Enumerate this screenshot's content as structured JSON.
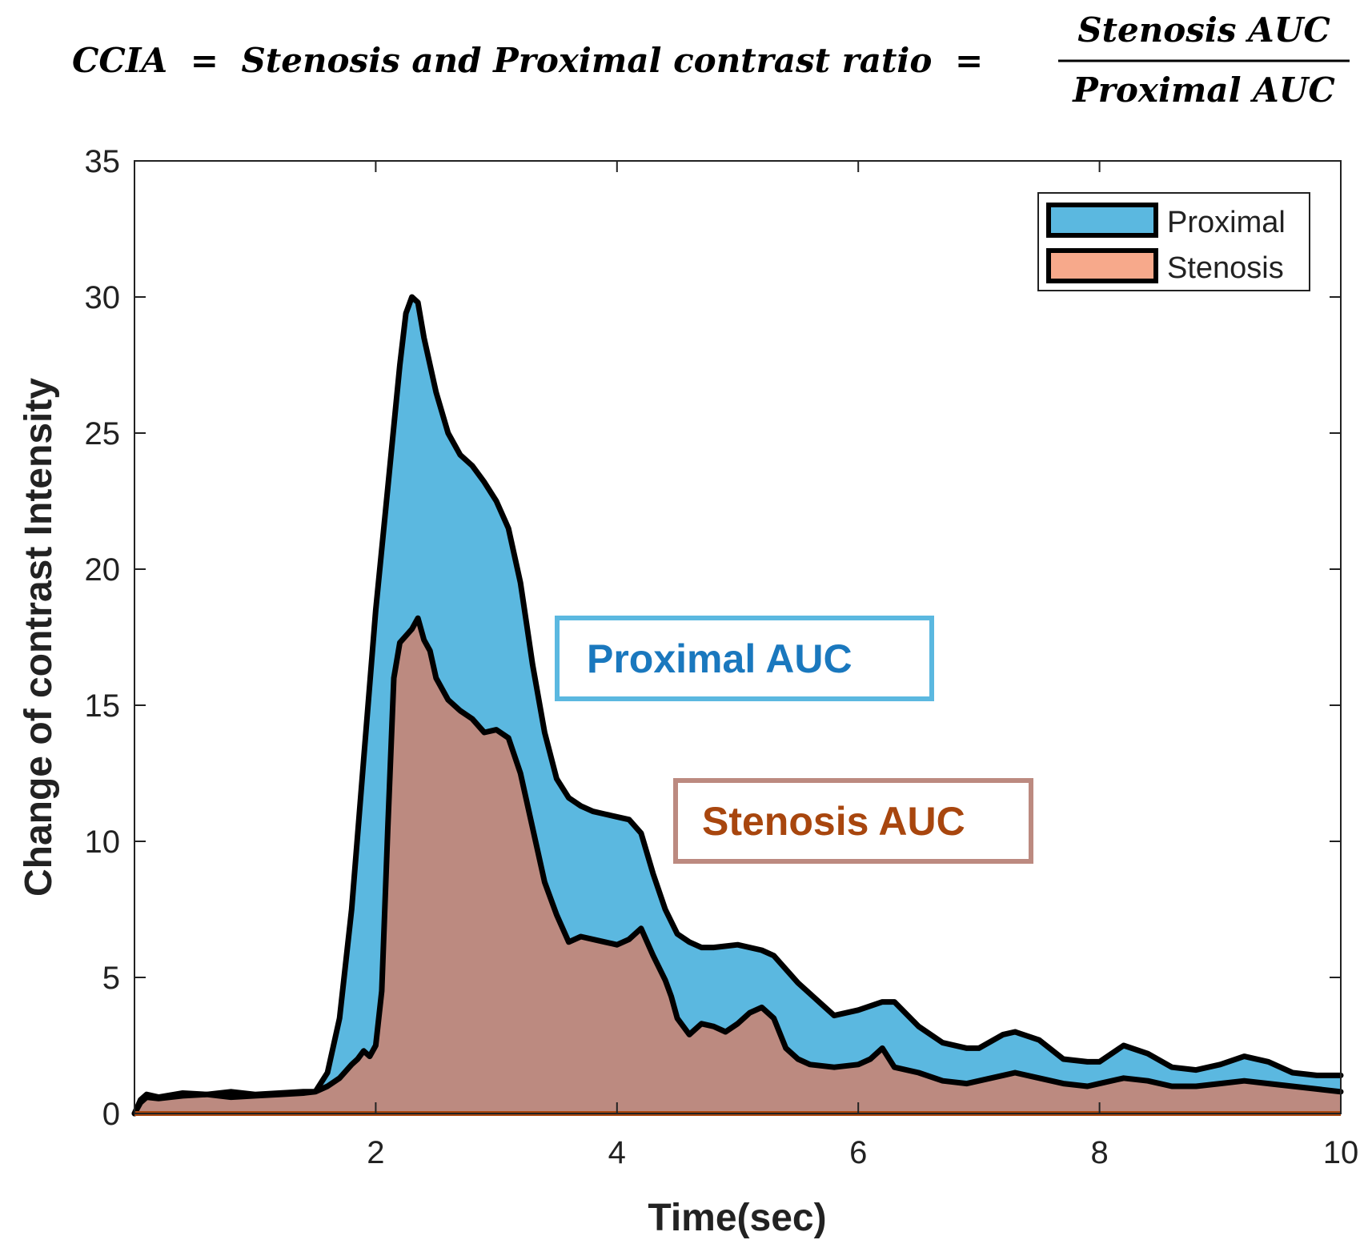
{
  "formula": {
    "lhs": "CCIA",
    "eq1": "=",
    "middle": "Stenosis and Proximal contrast ratio",
    "eq2": "=",
    "numerator": "Stenosis AUC",
    "denominator": "Proximal AUC"
  },
  "colors": {
    "proximal_fill": "#5BB8E0",
    "stenosis_fill": "#BC8A80",
    "stenosis_legend_fill": "#F7A98B",
    "proximal_box_border": "#5BB8E0",
    "proximal_box_text": "#1A78BE",
    "stenosis_box_border": "#BC8A80",
    "stenosis_box_text": "#A8460E",
    "stenosis_baseline": "#A8460E"
  },
  "chart_data": {
    "type": "area",
    "title": "",
    "xlabel": "Time(sec)",
    "ylabel": "Change of contrast Intensity",
    "xlim": [
      0,
      10
    ],
    "ylim": [
      0,
      35
    ],
    "xticks": [
      2,
      4,
      6,
      8,
      10
    ],
    "xtick_labels": [
      "2",
      "4",
      "6",
      "8",
      "10"
    ],
    "yticks": [
      0,
      5,
      10,
      15,
      20,
      25,
      30,
      35
    ],
    "ytick_labels": [
      "0",
      "5",
      "10",
      "15",
      "20",
      "25",
      "30",
      "35"
    ],
    "grid": false,
    "legend": {
      "placement": "top-right",
      "entries": [
        "Proximal",
        "Stenosis"
      ]
    },
    "annotations": [
      "Proximal AUC",
      "Stenosis AUC"
    ],
    "series": [
      {
        "name": "Proximal",
        "x": [
          0,
          0.05,
          0.1,
          0.2,
          0.4,
          0.6,
          0.8,
          1.0,
          1.2,
          1.4,
          1.5,
          1.6,
          1.7,
          1.8,
          1.9,
          2.0,
          2.1,
          2.2,
          2.25,
          2.3,
          2.35,
          2.4,
          2.5,
          2.6,
          2.7,
          2.8,
          2.9,
          3.0,
          3.1,
          3.2,
          3.25,
          3.3,
          3.4,
          3.5,
          3.6,
          3.7,
          3.8,
          3.9,
          4.0,
          4.1,
          4.2,
          4.3,
          4.4,
          4.5,
          4.6,
          4.7,
          4.8,
          5.0,
          5.2,
          5.3,
          5.5,
          5.7,
          5.8,
          6.0,
          6.2,
          6.3,
          6.5,
          6.7,
          6.9,
          7.0,
          7.2,
          7.3,
          7.5,
          7.7,
          7.9,
          8.0,
          8.2,
          8.4,
          8.6,
          8.8,
          9.0,
          9.2,
          9.4,
          9.6,
          9.8,
          10.0
        ],
        "values": [
          0,
          0.5,
          0.7,
          0.6,
          0.75,
          0.7,
          0.8,
          0.7,
          0.75,
          0.8,
          0.8,
          1.5,
          3.5,
          7.5,
          13,
          18.5,
          23,
          27.5,
          29.4,
          30.0,
          29.8,
          28.5,
          26.5,
          25.0,
          24.2,
          23.8,
          23.2,
          22.5,
          21.5,
          19.5,
          18.0,
          16.5,
          14.0,
          12.3,
          11.6,
          11.3,
          11.1,
          11.0,
          10.9,
          10.8,
          10.3,
          8.8,
          7.5,
          6.6,
          6.3,
          6.1,
          6.1,
          6.2,
          6.0,
          5.8,
          4.8,
          4.0,
          3.6,
          3.8,
          4.1,
          4.1,
          3.2,
          2.6,
          2.4,
          2.4,
          2.9,
          3.0,
          2.7,
          2.0,
          1.9,
          1.9,
          2.5,
          2.2,
          1.7,
          1.6,
          1.8,
          2.1,
          1.9,
          1.5,
          1.4,
          1.4
        ]
      },
      {
        "name": "Stenosis",
        "x": [
          0,
          0.05,
          0.1,
          0.2,
          0.4,
          0.6,
          0.8,
          1.0,
          1.2,
          1.4,
          1.5,
          1.6,
          1.7,
          1.8,
          1.85,
          1.9,
          1.95,
          2.0,
          2.05,
          2.1,
          2.15,
          2.2,
          2.3,
          2.35,
          2.4,
          2.45,
          2.5,
          2.6,
          2.7,
          2.8,
          2.9,
          3.0,
          3.1,
          3.2,
          3.3,
          3.4,
          3.5,
          3.6,
          3.7,
          3.8,
          3.9,
          4.0,
          4.1,
          4.2,
          4.3,
          4.4,
          4.45,
          4.5,
          4.6,
          4.7,
          4.8,
          4.9,
          5.0,
          5.1,
          5.2,
          5.3,
          5.4,
          5.5,
          5.6,
          5.8,
          6.0,
          6.1,
          6.2,
          6.3,
          6.5,
          6.7,
          6.9,
          7.0,
          7.2,
          7.3,
          7.5,
          7.7,
          7.9,
          8.0,
          8.2,
          8.4,
          8.6,
          8.8,
          9.0,
          9.2,
          9.4,
          9.6,
          9.8,
          10.0
        ],
        "values": [
          0,
          0.4,
          0.6,
          0.55,
          0.65,
          0.7,
          0.6,
          0.65,
          0.7,
          0.75,
          0.8,
          1.0,
          1.3,
          1.8,
          2.0,
          2.3,
          2.1,
          2.5,
          4.5,
          10.5,
          16.0,
          17.3,
          17.8,
          18.2,
          17.4,
          17.0,
          16.0,
          15.2,
          14.8,
          14.5,
          14.0,
          14.1,
          13.8,
          12.5,
          10.5,
          8.5,
          7.3,
          6.3,
          6.5,
          6.4,
          6.3,
          6.2,
          6.4,
          6.8,
          5.8,
          4.9,
          4.3,
          3.5,
          2.9,
          3.3,
          3.2,
          3.0,
          3.3,
          3.7,
          3.9,
          3.5,
          2.4,
          2.0,
          1.8,
          1.7,
          1.8,
          2.0,
          2.4,
          1.7,
          1.5,
          1.2,
          1.1,
          1.2,
          1.4,
          1.5,
          1.3,
          1.1,
          1.0,
          1.1,
          1.3,
          1.2,
          1.0,
          1.0,
          1.1,
          1.2,
          1.1,
          1.0,
          0.9,
          0.8
        ]
      }
    ]
  }
}
